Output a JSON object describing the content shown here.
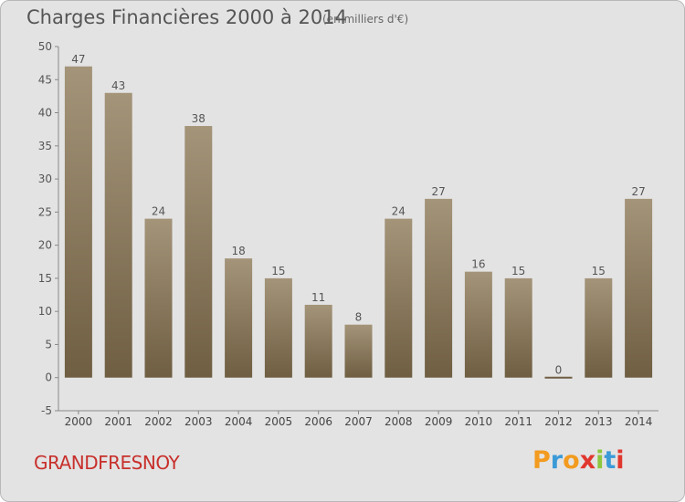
{
  "header": {
    "title": "Charges Financières 2000 à 2014",
    "subtitle": "(en milliers d'€)"
  },
  "footer": {
    "commune": "GRANDFRESNOY",
    "brand": "Proxiti"
  },
  "colors": {
    "background": "#e3e3e3",
    "bar_top": "#a49479",
    "bar_bottom": "#6f5e42",
    "commune_text": "#c8302c",
    "brand_letters": [
      "#f29b1f",
      "#3c9ad7",
      "#f29b1f",
      "#e0372f",
      "#8dc63f",
      "#3c9ad7",
      "#e0372f"
    ]
  },
  "chart_data": {
    "type": "bar",
    "title": "Charges Financières 2000 à 2014",
    "subtitle": "(en milliers d'€)",
    "xlabel": "",
    "ylabel": "",
    "categories": [
      "2000",
      "2001",
      "2002",
      "2003",
      "2004",
      "2005",
      "2006",
      "2007",
      "2008",
      "2009",
      "2010",
      "2011",
      "2012",
      "2013",
      "2014"
    ],
    "values": [
      47,
      43,
      24,
      38,
      18,
      15,
      11,
      8,
      24,
      27,
      16,
      15,
      0,
      15,
      27
    ],
    "value_labels": [
      "47",
      "43",
      "24",
      "38",
      "18",
      "15",
      "11",
      "8",
      "24",
      "27",
      "16",
      "15",
      "0",
      "15",
      "27"
    ],
    "ylim": [
      -5,
      50
    ],
    "yticks": [
      -5,
      0,
      5,
      10,
      15,
      20,
      25,
      30,
      35,
      40,
      45,
      50
    ],
    "ytick_labels": [
      "-5",
      "0",
      "5",
      "10",
      "15",
      "20",
      "25",
      "30",
      "35",
      "40",
      "45",
      "50"
    ],
    "grid": false,
    "legend": "none"
  }
}
